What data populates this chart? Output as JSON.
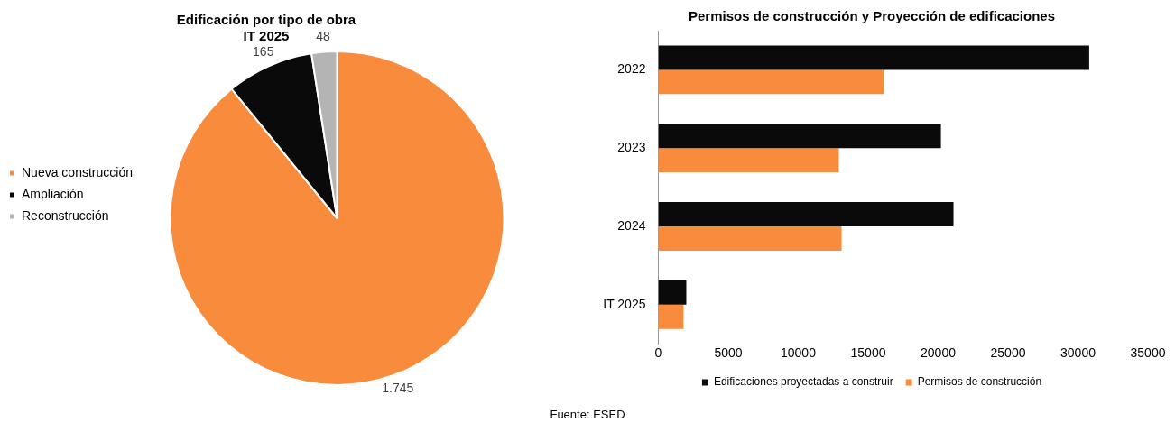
{
  "chart_data": [
    {
      "type": "pie",
      "title": "Edificación por tipo de obra\nIT 2025",
      "categories": [
        "Nueva construcción",
        "Ampliación",
        "Reconstrucción"
      ],
      "values": [
        1745,
        165,
        48
      ],
      "value_labels": [
        "1.745",
        "165",
        "48"
      ],
      "colors": [
        "#f98b3c",
        "#0a0a0a",
        "#b4b4b4"
      ],
      "legend": "left"
    },
    {
      "type": "bar",
      "title": "Permisos de construcción y Proyección de edificaciones",
      "orientation": "horizontal",
      "categories": [
        "2022",
        "2023",
        "2024",
        "IT 2025"
      ],
      "series": [
        {
          "name": "Edificaciones proyectadas a construir",
          "color": "#0a0a0a",
          "values": [
            30800,
            20200,
            21100,
            2000
          ]
        },
        {
          "name": "Permisos de construcción",
          "color": "#f98b3c",
          "values": [
            16100,
            12900,
            13100,
            1800
          ]
        }
      ],
      "xlim": [
        0,
        35000
      ],
      "xticks": [
        0,
        5000,
        10000,
        15000,
        20000,
        25000,
        30000,
        35000
      ],
      "grid": false,
      "legend": "bottom",
      "annotations": [
        "Fuente: ESED"
      ]
    }
  ]
}
